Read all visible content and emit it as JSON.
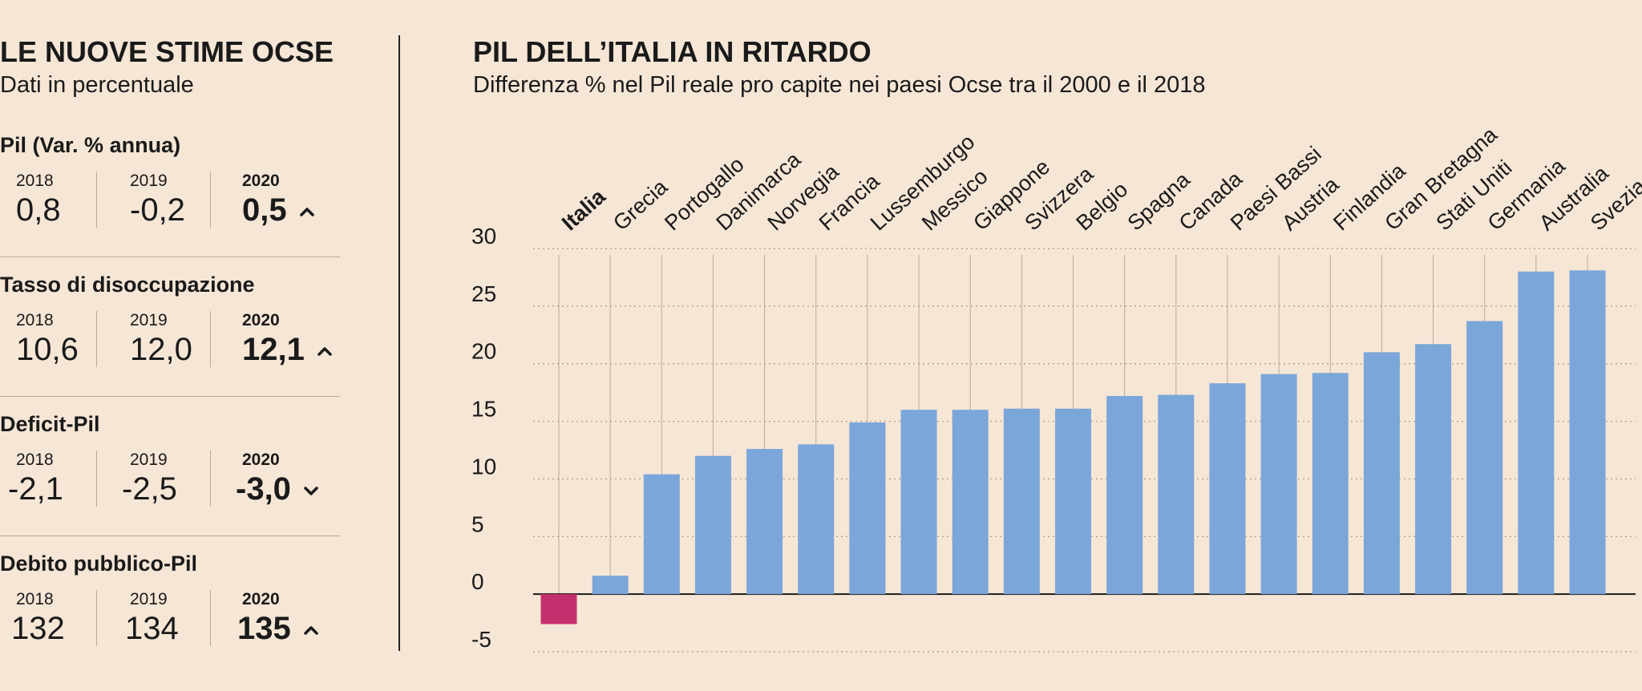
{
  "left": {
    "title": "LE NUOVE STIME OCSE",
    "subtitle": "Dati in percentuale",
    "indicators": [
      {
        "name": "Pil (Var. % annua)",
        "years": [
          "2018",
          "2019",
          "2020"
        ],
        "values": [
          "0,8",
          "-0,2",
          "0,5"
        ],
        "trend": "up"
      },
      {
        "name": "Tasso di disoccupazione",
        "years": [
          "2018",
          "2019",
          "2020"
        ],
        "values": [
          "10,6",
          "12,0",
          "12,1"
        ],
        "trend": "up"
      },
      {
        "name": "Deficit-Pil",
        "years": [
          "2018",
          "2019",
          "2020"
        ],
        "values": [
          "-2,1",
          "-2,5",
          "-3,0"
        ],
        "trend": "down"
      },
      {
        "name": "Debito pubblico-Pil",
        "years": [
          "2018",
          "2019",
          "2020"
        ],
        "values": [
          "132",
          "134",
          "135"
        ],
        "trend": "up"
      }
    ]
  },
  "colors": {
    "bar": "#7ba6d9",
    "highlight": "#c4306e",
    "grid": "#a89a8a",
    "text": "#1a1a1a"
  },
  "chart_data": {
    "type": "bar",
    "title": "PIL DELL’ITALIA IN RITARDO",
    "subtitle": "Differenza % nel Pil reale pro capite nei paesi Ocse tra il 2000 e il 2018",
    "categories": [
      "Italia",
      "Grecia",
      "Portogallo",
      "Danimarca",
      "Norvegia",
      "Francia",
      "Lussemburgo",
      "Messico",
      "Giappone",
      "Svizzera",
      "Belgio",
      "Spagna",
      "Canada",
      "Paesi Bassi",
      "Austria",
      "Finlandia",
      "Gran Bretagna",
      "Stati Uniti",
      "Germania",
      "Australia",
      "Svezia"
    ],
    "values": [
      -2.6,
      1.6,
      10.4,
      12.0,
      12.6,
      13.0,
      14.9,
      16.0,
      16.0,
      16.1,
      16.1,
      17.2,
      17.3,
      18.3,
      19.1,
      19.2,
      21.0,
      21.7,
      23.7,
      28.0,
      28.1
    ],
    "highlight": "Italia",
    "yticks": [
      -5,
      0,
      5,
      10,
      15,
      20,
      25,
      30
    ],
    "ylim": [
      -5,
      30
    ],
    "xlabel": "",
    "ylabel": "",
    "grid": true
  }
}
